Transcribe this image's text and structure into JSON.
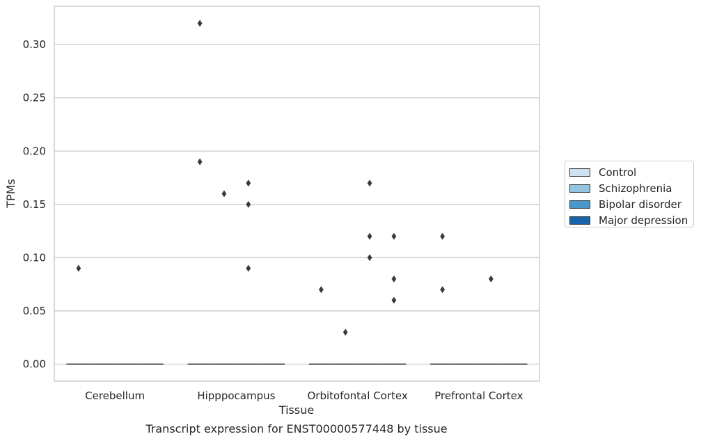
{
  "chart_data": {
    "type": "boxplot",
    "title": "Transcript expression for ENST00000577448 by tissue",
    "xlabel": "Tissue",
    "ylabel": "TPMs",
    "ylim": [
      -0.016,
      0.336
    ],
    "yticks": [
      "0.00",
      "0.05",
      "0.10",
      "0.15",
      "0.20",
      "0.25",
      "0.30"
    ],
    "ytick_values": [
      0,
      0.05,
      0.1,
      0.15,
      0.2,
      0.25,
      0.3
    ],
    "grid": true,
    "legend_position": "right",
    "categories": [
      "Cerebellum",
      "Hipppocampus",
      "Orbitofontal Cortex",
      "Prefrontal Cortex"
    ],
    "series": [
      {
        "name": "Control",
        "color": "#d0e1f2",
        "medians": [
          0,
          0,
          0,
          0
        ],
        "outliers": [
          [
            0.09
          ],
          [
            0.32,
            0.19
          ],
          [
            0.07
          ],
          [
            0.12,
            0.07
          ]
        ]
      },
      {
        "name": "Schizophrenia",
        "color": "#94c4df",
        "medians": [
          0,
          0,
          0,
          0
        ],
        "outliers": [
          [],
          [
            0.16
          ],
          [
            0.03
          ],
          []
        ]
      },
      {
        "name": "Bipolar disorder",
        "color": "#4a98c9",
        "medians": [
          0,
          0,
          0,
          0
        ],
        "outliers": [
          [],
          [
            0.17,
            0.15,
            0.09
          ],
          [
            0.17,
            0.12,
            0.1
          ],
          [
            0.08
          ]
        ]
      },
      {
        "name": "Major depression",
        "color": "#1764ab",
        "medians": [
          0,
          0,
          0,
          0
        ],
        "outliers": [
          [],
          [],
          [
            0.12,
            0.08,
            0.06
          ],
          []
        ]
      }
    ]
  }
}
